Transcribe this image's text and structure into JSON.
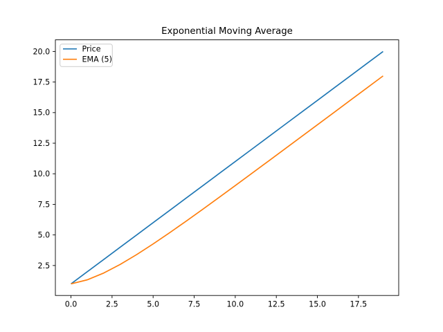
{
  "chart_data": {
    "type": "line",
    "title": "Exponential Moving Average",
    "xlabel": "",
    "ylabel": "",
    "x": [
      0,
      1,
      2,
      3,
      4,
      5,
      6,
      7,
      8,
      9,
      10,
      11,
      12,
      13,
      14,
      15,
      16,
      17,
      18,
      19
    ],
    "series": [
      {
        "name": "Price",
        "color": "#1f77b4",
        "values": [
          1,
          2,
          3,
          4,
          5,
          6,
          7,
          8,
          9,
          10,
          11,
          12,
          13,
          14,
          15,
          16,
          17,
          18,
          19,
          20
        ]
      },
      {
        "name": "EMA (5)",
        "color": "#ff7f0e",
        "values": [
          1.0,
          1.3333,
          1.8889,
          2.5926,
          3.3951,
          4.2634,
          5.1756,
          6.1171,
          7.078,
          8.052,
          9.0347,
          10.0231,
          11.0154,
          12.0103,
          13.0069,
          14.0046,
          15.003,
          16.002,
          17.0014,
          18.0009
        ]
      }
    ],
    "xlim": [
      -0.95,
      19.95
    ],
    "ylim": [
      0.05,
      20.95
    ],
    "x_ticks": [
      0.0,
      2.5,
      5.0,
      7.5,
      10.0,
      12.5,
      15.0,
      17.5
    ],
    "y_ticks": [
      2.5,
      5.0,
      7.5,
      10.0,
      12.5,
      15.0,
      17.5,
      20.0
    ],
    "tick_decimals": 1,
    "grid": false,
    "legend": {
      "position": "upper-left",
      "items": [
        "Price",
        "EMA (5)"
      ]
    },
    "colors": {
      "spine": "#000000",
      "legend_border": "#cccccc",
      "background": "#ffffff"
    }
  }
}
